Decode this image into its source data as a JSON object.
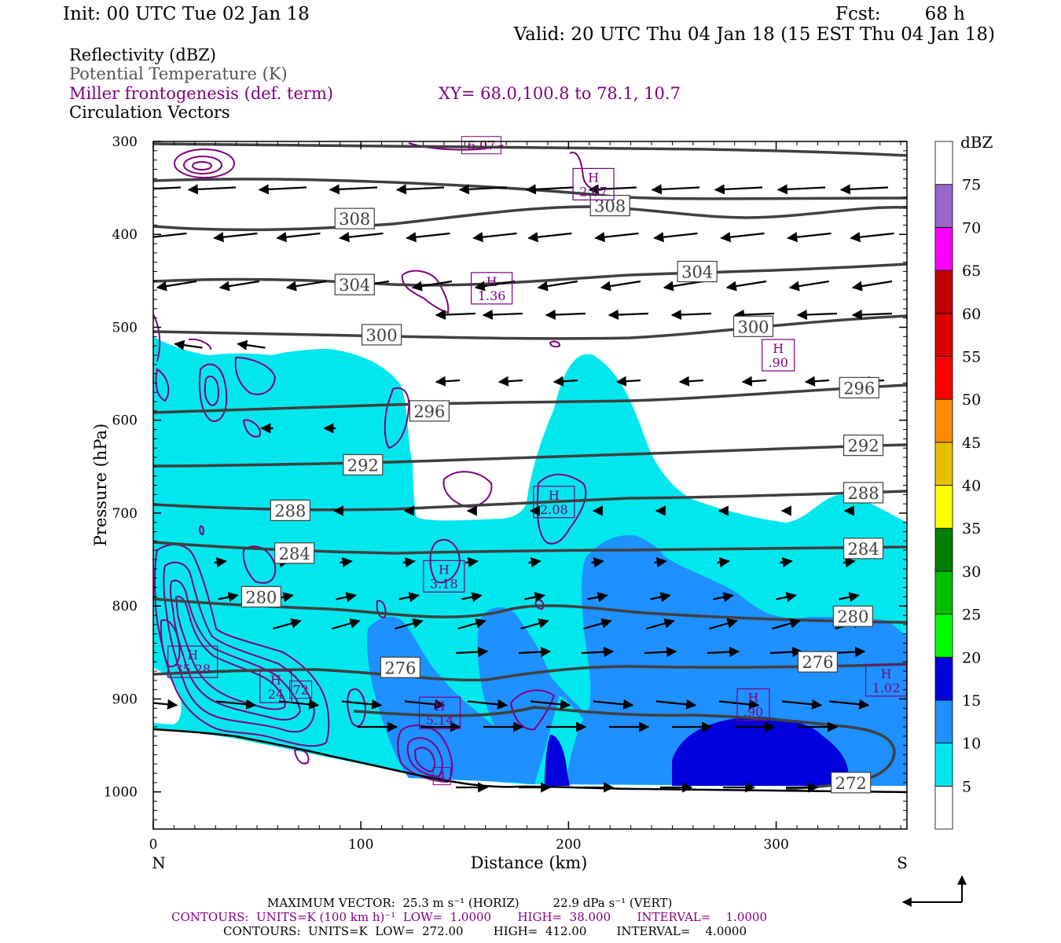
{
  "header": {
    "init": "Init: 00 UTC Tue 02 Jan 18",
    "fcst_label": "Fcst:",
    "fcst_value": "68 h",
    "valid": "Valid: 20 UTC Thu 04 Jan 18 (15 EST Thu 04 Jan 18)",
    "line1": "Reflectivity (dBZ)",
    "line2": "Potential Temperature (K)",
    "line3": "Miller frontogenesis (def. term)",
    "line3_xy": "XY=  68.0,100.8 to  78.1, 10.7",
    "line4": "Circulation Vectors"
  },
  "colors": {
    "refl": "#00e8ee",
    "refl_mid": "#1e90ff",
    "refl_deep": "#0000dd",
    "theta": "#404040",
    "fronto": "#800080",
    "purple_text": "#800080",
    "gray_text": "#555555"
  },
  "legend": {
    "unit": "dBZ",
    "levels": [
      "5",
      "10",
      "15",
      "20",
      "25",
      "30",
      "35",
      "40",
      "45",
      "50",
      "55",
      "60",
      "65",
      "70",
      "75"
    ],
    "colors": [
      "#ffffff",
      "#00e8ee",
      "#1e90ff",
      "#0000dd",
      "#00ff00",
      "#00c000",
      "#008000",
      "#ffff00",
      "#e6c000",
      "#ff8c00",
      "#ff0000",
      "#dd0000",
      "#c00000",
      "#ff00ff",
      "#9966cc",
      "#ffffff"
    ]
  },
  "footer": {
    "max_vector": "MAXIMUM VECTOR:  25.3 m s⁻¹ (HORIZ)         22.9 dPa s⁻¹ (VERT)",
    "contours1": "CONTOURS:  UNITS=K (100 km h)⁻¹  LOW=  1.0000       HIGH=  38.000       INTERVAL=    1.0000",
    "contours2": "CONTOURS:  UNITS=K  LOW=  272.00        HIGH=  412.00        INTERVAL=    4.0000"
  },
  "chart_data": {
    "type": "cross-section",
    "xlabel": "Distance (km)",
    "ylabel": "Pressure (hPa)",
    "xlim": [
      0,
      363
    ],
    "ylim": [
      300,
      1040
    ],
    "x_ticks": [
      "0",
      "100",
      "200",
      "300"
    ],
    "y_ticks": [
      "300",
      "400",
      "500",
      "600",
      "700",
      "800",
      "900",
      "1000"
    ],
    "x_end_labels": {
      "left": "N",
      "right": "S"
    },
    "theta_contours": [
      {
        "label": "308",
        "points": [
          [
            0,
            392
          ],
          [
            50,
            400
          ],
          [
            100,
            393
          ],
          [
            150,
            383
          ],
          [
            200,
            369
          ],
          [
            250,
            370
          ],
          [
            300,
            370
          ],
          [
            363,
            368
          ]
        ],
        "labels_at": [
          [
            97,
            383
          ],
          [
            220,
            369
          ]
        ]
      },
      {
        "label": "304",
        "points": [
          [
            0,
            452
          ],
          [
            60,
            455
          ],
          [
            120,
            455
          ],
          [
            180,
            455
          ],
          [
            240,
            445
          ],
          [
            300,
            438
          ],
          [
            363,
            433
          ]
        ],
        "labels_at": [
          [
            97,
            454
          ],
          [
            262,
            440
          ]
        ]
      },
      {
        "label": "300",
        "points": [
          [
            0,
            504
          ],
          [
            80,
            508
          ],
          [
            150,
            508
          ],
          [
            220,
            510
          ],
          [
            270,
            508
          ],
          [
            320,
            493
          ],
          [
            363,
            487
          ]
        ],
        "labels_at": [
          [
            110,
            508
          ],
          [
            289,
            499
          ]
        ]
      },
      {
        "label": "296",
        "points": [
          [
            0,
            595
          ],
          [
            60,
            590
          ],
          [
            120,
            585
          ],
          [
            200,
            585
          ],
          [
            260,
            578
          ],
          [
            320,
            562
          ],
          [
            363,
            557
          ]
        ],
        "labels_at": [
          [
            133,
            590
          ],
          [
            340,
            565
          ]
        ]
      },
      {
        "label": "292",
        "points": [
          [
            0,
            650
          ],
          [
            80,
            650
          ],
          [
            150,
            645
          ],
          [
            200,
            641
          ],
          [
            260,
            640
          ],
          [
            320,
            628
          ],
          [
            363,
            625
          ]
        ],
        "labels_at": [
          [
            101,
            648
          ],
          [
            342,
            627
          ]
        ]
      },
      {
        "label": "288",
        "points": [
          [
            0,
            691
          ],
          [
            60,
            697
          ],
          [
            120,
            695
          ],
          [
            170,
            688
          ],
          [
            220,
            684
          ],
          [
            280,
            683
          ],
          [
            363,
            677
          ]
        ],
        "labels_at": [
          [
            66,
            697
          ],
          [
            342,
            678
          ]
        ]
      },
      {
        "label": "284",
        "points": [
          [
            0,
            733
          ],
          [
            70,
            743
          ],
          [
            130,
            745
          ],
          [
            180,
            737
          ],
          [
            230,
            737
          ],
          [
            300,
            737
          ],
          [
            363,
            735
          ]
        ],
        "labels_at": [
          [
            68,
            743
          ],
          [
            342,
            738
          ]
        ]
      },
      {
        "label": "280",
        "points": [
          [
            0,
            785
          ],
          [
            50,
            790
          ],
          [
            100,
            795
          ],
          [
            150,
            797
          ],
          [
            180,
            785
          ],
          [
            230,
            799
          ],
          [
            300,
            805
          ],
          [
            363,
            812
          ]
        ],
        "labels_at": [
          [
            52,
            790
          ],
          [
            337,
            811
          ]
        ]
      },
      {
        "label": "276",
        "points": [
          [
            0,
            866
          ],
          [
            60,
            864
          ],
          [
            120,
            866
          ],
          [
            160,
            871
          ],
          [
            200,
            858
          ],
          [
            260,
            860
          ],
          [
            320,
            858
          ],
          [
            363,
            856
          ]
        ],
        "labels_at": [
          [
            119,
            866
          ],
          [
            320,
            860
          ]
        ]
      },
      {
        "label": "272",
        "points": [
          [
            150,
            920
          ],
          [
            220,
            915
          ],
          [
            280,
            922
          ],
          [
            340,
            930
          ],
          [
            356,
            945
          ],
          [
            355,
            972
          ],
          [
            335,
            995
          ],
          [
            300,
            1001
          ]
        ],
        "labels_at": [
          [
            336,
            990
          ]
        ]
      }
    ],
    "fronto_maxima": [
      {
        "label": "H",
        "value": "2.07",
        "x": 212,
        "p": 346
      },
      {
        "label": "H",
        "value": "1.36",
        "x": 163,
        "p": 458
      },
      {
        "label": "H",
        "value": ".90",
        "x": 301,
        "p": 530
      },
      {
        "label": "H",
        "value": "2.08",
        "x": 193,
        "p": 688
      },
      {
        "label": "H",
        "value": "3.18",
        "x": 140,
        "p": 768
      },
      {
        "label": "H",
        "value": "35.28",
        "x": 19,
        "p": 860
      },
      {
        "label": "H",
        "value": "24",
        "x": 59,
        "p": 887
      },
      {
        "label": "H",
        "value": "5.14",
        "x": 138,
        "p": 915
      },
      {
        "label": "H",
        "value": ".90",
        "x": 289,
        "p": 906
      },
      {
        "label": "H",
        "value": "1.02",
        "x": 353,
        "p": 880
      },
      {
        "label": "",
        "value": "4",
        "x": 139,
        "p": 983
      },
      {
        "label": "",
        "value": "72",
        "x": 71,
        "p": 890
      },
      {
        "label": "",
        "value": "6.07",
        "x": 158,
        "p": 304
      }
    ],
    "reflectivity_regions": [
      {
        "dbz": 5,
        "description": "low-mid troposphere echo"
      },
      {
        "dbz": 10,
        "description": "central and southern echo"
      },
      {
        "dbz": 15,
        "description": "southern near-surface core"
      }
    ]
  }
}
